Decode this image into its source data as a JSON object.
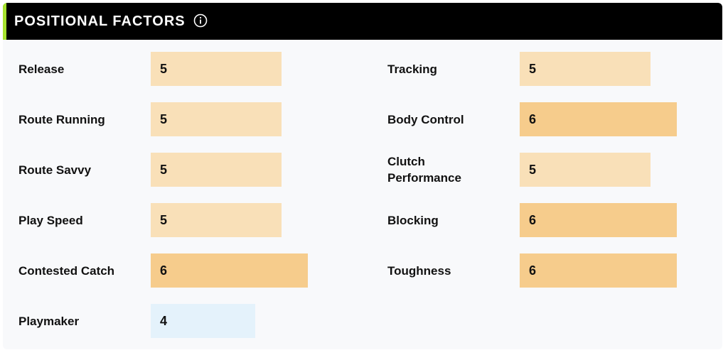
{
  "header": {
    "title": "POSITIONAL FACTORS",
    "info_icon": "info-circle-icon",
    "accent_color": "#a6e22e"
  },
  "factors": {
    "left": [
      {
        "label": "Release",
        "value": "5"
      },
      {
        "label": "Route Running",
        "value": "5"
      },
      {
        "label": "Route Savvy",
        "value": "5"
      },
      {
        "label": "Play Speed",
        "value": "5"
      },
      {
        "label": "Contested Catch",
        "value": "6"
      },
      {
        "label": "Playmaker",
        "value": "4"
      }
    ],
    "right": [
      {
        "label": "Tracking",
        "value": "5"
      },
      {
        "label": "Body Control",
        "value": "6"
      },
      {
        "label": "Clutch\nPerformance",
        "value": "5"
      },
      {
        "label": "Blocking",
        "value": "6"
      },
      {
        "label": "Toughness",
        "value": "6"
      }
    ]
  },
  "colors": {
    "level_4": "#e4f2fb",
    "level_5": "#f9e0b8",
    "level_6": "#f6cc8c"
  }
}
